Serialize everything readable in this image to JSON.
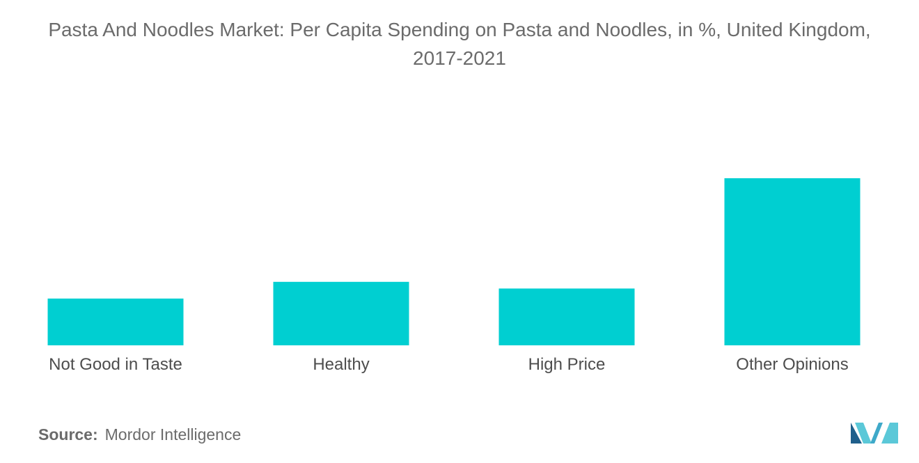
{
  "chart_data": {
    "type": "bar",
    "title": "Pasta And Noodles Market: Per Capita Spending on Pasta and Noodles, in %, United Kingdom, 2017-2021",
    "categories": [
      "Not Good in Taste",
      "Healthy",
      "High Price",
      "Other Opinions"
    ],
    "values": [
      14,
      19,
      17,
      50
    ],
    "xlabel": "",
    "ylabel": "",
    "ylim": [
      0,
      50
    ],
    "grid": false,
    "legend": "none",
    "bar_color": "#00cfd1"
  },
  "footer": {
    "source_label": "Source:",
    "source_value": "Mordor Intelligence"
  },
  "logo": {
    "icon": "mordor-intelligence-logo-icon",
    "colors": [
      "#1f5f8b",
      "#3fa9c9",
      "#5bc8d8"
    ]
  }
}
